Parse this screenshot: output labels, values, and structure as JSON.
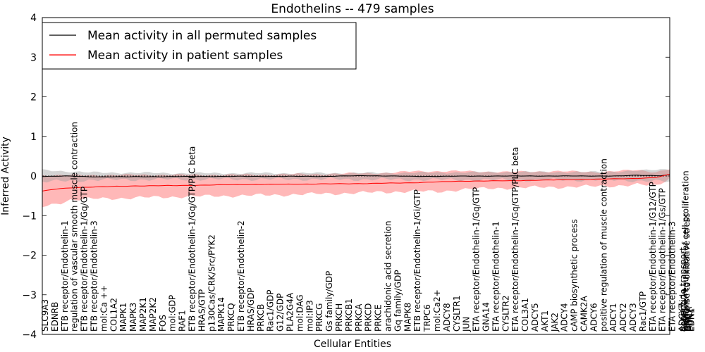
{
  "chart_data": {
    "type": "line",
    "title": "Endothelins -- 479 samples",
    "xlabel": "Cellular Entities",
    "ylabel": "Inferred Activity",
    "ylim": [
      -4,
      4
    ],
    "yticks": [
      "4",
      "3",
      "2",
      "1",
      "0",
      "−1",
      "−2",
      "−3",
      "−4"
    ],
    "grid": false,
    "legend_position": "top-left",
    "reference_line": 0,
    "colors": {
      "permuted": "#000000",
      "patient": "#ff0000",
      "permuted_band": "#a0a0a0",
      "patient_band": "#ff9a9a"
    },
    "x_count": 136,
    "series": [
      {
        "name": "Mean activity in all permuted samples",
        "color": "#000000",
        "anchors": [
          [
            0,
            -0.01
          ],
          [
            5,
            0.0
          ],
          [
            10,
            -0.02
          ],
          [
            20,
            -0.02
          ],
          [
            40,
            -0.01
          ],
          [
            60,
            -0.01
          ],
          [
            70,
            0.01
          ],
          [
            80,
            -0.01
          ],
          [
            100,
            0.0
          ],
          [
            112,
            0.0
          ],
          [
            124,
            0.0
          ],
          [
            128,
            0.02
          ],
          [
            133,
            0.01
          ],
          [
            135,
            0.03
          ]
        ],
        "band_upper": [
          [
            0,
            0.15
          ],
          [
            10,
            0.09
          ],
          [
            30,
            0.07
          ],
          [
            60,
            0.07
          ],
          [
            80,
            0.08
          ],
          [
            100,
            0.1
          ],
          [
            120,
            0.1
          ],
          [
            130,
            0.14
          ],
          [
            135,
            0.18
          ]
        ],
        "band_lower": [
          [
            0,
            -0.15
          ],
          [
            10,
            -0.1
          ],
          [
            30,
            -0.08
          ],
          [
            60,
            -0.08
          ],
          [
            80,
            -0.09
          ],
          [
            100,
            -0.1
          ],
          [
            120,
            -0.1
          ],
          [
            130,
            -0.12
          ],
          [
            135,
            -0.15
          ]
        ]
      },
      {
        "name": "Mean activity in patient samples",
        "color": "#ff0000",
        "anchors": [
          [
            0,
            -0.38
          ],
          [
            3,
            -0.33
          ],
          [
            6,
            -0.3
          ],
          [
            10,
            -0.28
          ],
          [
            20,
            -0.25
          ],
          [
            30,
            -0.24
          ],
          [
            40,
            -0.22
          ],
          [
            50,
            -0.21
          ],
          [
            60,
            -0.2
          ],
          [
            70,
            -0.19
          ],
          [
            80,
            -0.17
          ],
          [
            90,
            -0.13
          ],
          [
            100,
            -0.12
          ],
          [
            110,
            -0.1
          ],
          [
            120,
            -0.08
          ],
          [
            128,
            -0.06
          ],
          [
            132,
            -0.04
          ],
          [
            135,
            0.04
          ]
        ],
        "band_upper": [
          [
            0,
            0.02
          ],
          [
            5,
            0.02
          ],
          [
            10,
            0.02
          ],
          [
            20,
            0.03
          ],
          [
            40,
            0.03
          ],
          [
            60,
            0.05
          ],
          [
            75,
            0.08
          ],
          [
            80,
            0.12
          ],
          [
            90,
            0.12
          ],
          [
            100,
            0.1
          ],
          [
            110,
            0.12
          ],
          [
            120,
            0.1
          ],
          [
            128,
            0.15
          ],
          [
            132,
            0.1
          ],
          [
            135,
            0.18
          ]
        ],
        "band_lower": [
          [
            0,
            -0.78
          ],
          [
            3,
            -0.7
          ],
          [
            6,
            -0.6
          ],
          [
            10,
            -0.58
          ],
          [
            20,
            -0.55
          ],
          [
            30,
            -0.52
          ],
          [
            40,
            -0.5
          ],
          [
            50,
            -0.48
          ],
          [
            60,
            -0.45
          ],
          [
            70,
            -0.42
          ],
          [
            80,
            -0.38
          ],
          [
            85,
            -0.4
          ],
          [
            90,
            -0.34
          ],
          [
            100,
            -0.3
          ],
          [
            110,
            -0.28
          ],
          [
            120,
            -0.26
          ],
          [
            128,
            -0.22
          ],
          [
            132,
            -0.25
          ],
          [
            135,
            -0.05
          ]
        ]
      }
    ],
    "entity_labels": [
      "SLC9A3",
      "EDNRB",
      "ETB receptor/Endothelin-1",
      "regulation of vascular smooth muscle contraction",
      "ETB receptor/Endothelin-1/Gq/GTP",
      "ETB receptor/Endothelin-3",
      "mol:Ca ++",
      "COL1A2",
      "MAPK1",
      "MAPK3",
      "MAP2K1",
      "MAP2K2",
      "FOS",
      "mol:GDP",
      "RAF1",
      "ETB receptor/Endothelin-1/Gq/GTP/PLC beta",
      "HRAS/GTP",
      "p130Cas/CRK/Src/PYK2",
      "MAPK14",
      "PRKCQ",
      "ETB receptor/Endothelin-2",
      "HRAS/GDP",
      "PRKCB",
      "Rac1/GDP",
      "G12/GDP",
      "PLA2G4A",
      "mol:DAG",
      "mol:IP3",
      "PRKCG",
      "Gs family/GDP",
      "PRKCH",
      "PRKCB1",
      "PRKCA",
      "PRKCD",
      "PRKCE",
      "arachidonic acid secretion",
      "Gq family/GDP",
      "MAPK8",
      "ETB receptor/Endothelin-1/Gi/GTP",
      "TRPC6",
      "mol:Ca2+",
      "ADCY8",
      "CYSLTR1",
      "JUN",
      "ETA receptor/Endothelin-1/Gq/GTP",
      "GNA14",
      "ETA receptor/Endothelin-1",
      "CYSLTR2",
      "ETA receptor/Endothelin-1/Gq/GTP/PLC beta",
      "COL3A1",
      "ADCY5",
      "AKT1",
      "JAK2",
      "ADCY4",
      "cAMP biosynthetic process",
      "CAMK2A",
      "ADCY6",
      "positive regulation of muscle contraction",
      "ADCY1",
      "ADCY2",
      "ADCY3",
      "Rac1/GTP",
      "ETA receptor/Endothelin-1/G12/GTP",
      "ETA receptor/Endothelin-1/Gs/GTP",
      "ETA receptor/Endothelin-3",
      "ADCY7",
      "Sopeptide transport",
      "CaM/Ca2+",
      "positive regulation of cell proliferation",
      "response to oxidative stress",
      "BMF",
      "HIF1A",
      "EDN2",
      "EDN1"
    ]
  }
}
